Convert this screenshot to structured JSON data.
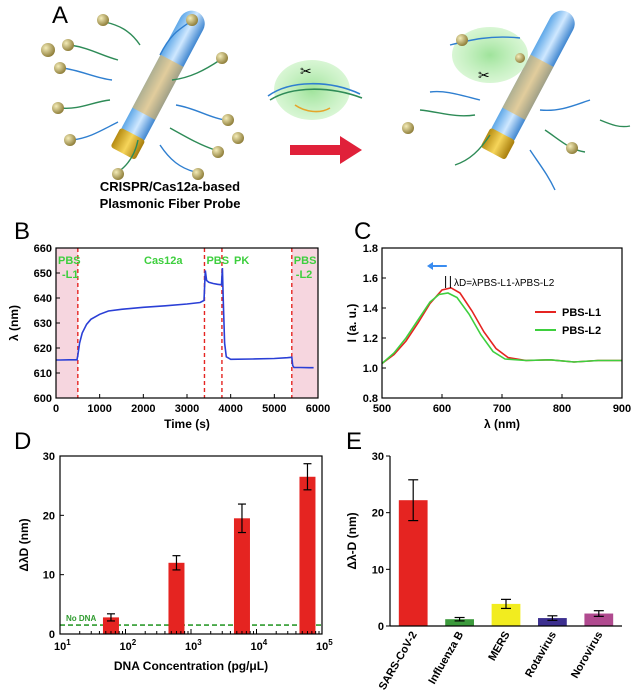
{
  "panels": {
    "A": "A",
    "B": "B",
    "C": "C",
    "D": "D",
    "E": "E"
  },
  "schematic": {
    "caption_line1": "CRISPR/Cas12a-based",
    "caption_line2": "Plasmonic Fiber Probe"
  },
  "colors": {
    "red": "#e52421",
    "blue": "#2a3fd6",
    "green": "#3ecf3e",
    "pink": "#f6d6df",
    "yellow": "#f2ec1f",
    "purple": "#3c2f8f",
    "magenta": "#b04a8f"
  },
  "chart_data": [
    {
      "id": "B",
      "type": "line",
      "xlabel": "Time (s)",
      "ylabel": "λ (nm)",
      "xlim": [
        0,
        6000
      ],
      "ylim": [
        600,
        660
      ],
      "xticks": [
        0,
        1000,
        2000,
        3000,
        4000,
        5000,
        6000
      ],
      "yticks": [
        600,
        610,
        620,
        630,
        640,
        650,
        660
      ],
      "dashed_markers_x": [
        500,
        3400,
        3800,
        5400
      ],
      "shaded_regions_x": [
        [
          0,
          500
        ],
        [
          5400,
          6000
        ]
      ],
      "stage_labels": [
        "PBS",
        "-L1",
        "Cas12a",
        "PBS",
        "PK",
        "PBS",
        "-L2"
      ],
      "series": [
        {
          "x": [
            0,
            100,
            300,
            480,
            500,
            540,
            600,
            700,
            800,
            1000,
            1200,
            1500,
            2000,
            2500,
            3000,
            3300,
            3390,
            3420,
            3450,
            3500,
            3600,
            3700,
            3790,
            3810,
            3830,
            3860,
            3900,
            4000,
            4500,
            5000,
            5300,
            5400,
            5420,
            5450,
            5600,
            5800,
            5900
          ],
          "y": [
            615.2,
            615.2,
            615.3,
            615.3,
            617,
            622,
            626,
            629.5,
            631.5,
            633.5,
            634.8,
            635.5,
            636.3,
            636.9,
            637.6,
            638.2,
            639,
            651,
            647,
            646.3,
            645.8,
            645.5,
            645.3,
            652,
            640,
            622,
            616.5,
            615.5,
            615.6,
            615.8,
            616.1,
            616.3,
            613,
            612.2,
            612.2,
            612.1,
            612.1
          ]
        }
      ]
    },
    {
      "id": "C",
      "type": "line",
      "xlabel": "λ (nm)",
      "ylabel": "I (a. u.)",
      "xlim": [
        500,
        900
      ],
      "ylim": [
        0.8,
        1.8
      ],
      "xticks": [
        500,
        600,
        700,
        800,
        900
      ],
      "yticks": [
        0.8,
        1.0,
        1.2,
        1.4,
        1.6,
        1.8
      ],
      "annotation": {
        "main": "λD=λPBS-L1-λPBS-L2"
      },
      "legend": "right",
      "series": [
        {
          "name": "PBS-L1",
          "color": "#e52421",
          "x": [
            500,
            520,
            540,
            560,
            580,
            600,
            615,
            630,
            650,
            670,
            690,
            710,
            740,
            780,
            820,
            860,
            900
          ],
          "y": [
            1.03,
            1.09,
            1.18,
            1.3,
            1.43,
            1.52,
            1.535,
            1.5,
            1.38,
            1.24,
            1.13,
            1.07,
            1.05,
            1.055,
            1.04,
            1.05,
            1.05
          ]
        },
        {
          "name": "PBS-L2",
          "color": "#3ecf3e",
          "x": [
            500,
            520,
            540,
            560,
            580,
            595,
            610,
            625,
            645,
            665,
            685,
            705,
            740,
            780,
            820,
            860,
            900
          ],
          "y": [
            1.03,
            1.1,
            1.2,
            1.32,
            1.44,
            1.49,
            1.5,
            1.47,
            1.36,
            1.22,
            1.11,
            1.06,
            1.05,
            1.055,
            1.04,
            1.05,
            1.05
          ]
        }
      ]
    },
    {
      "id": "D",
      "type": "bar",
      "xlabel": "DNA Concentration (pg/μL)",
      "ylabel": "ΔλD (nm)",
      "xscale": "log",
      "xlim": [
        10,
        100000
      ],
      "ylim": [
        0,
        30
      ],
      "xticks": [
        "10^1",
        "10^2",
        "10^3",
        "10^4",
        "10^5"
      ],
      "yticks": [
        0,
        10,
        20,
        30
      ],
      "x": [
        60,
        600,
        6000,
        60000
      ],
      "values": [
        2.8,
        12.0,
        19.5,
        26.5
      ],
      "errors": [
        0.6,
        1.2,
        2.4,
        2.2
      ],
      "baseline": {
        "label": "No DNA",
        "value": 1.5
      }
    },
    {
      "id": "E",
      "type": "bar",
      "xlabel": "",
      "ylabel": "Δλ-D (nm)",
      "ylim": [
        0,
        30
      ],
      "yticks": [
        0,
        10,
        20,
        30
      ],
      "categories": [
        "SARS-CoV-2",
        "Influenza B",
        "MERS",
        "Rotavirus",
        "Norovirus"
      ],
      "values": [
        22.2,
        1.2,
        3.9,
        1.4,
        2.2
      ],
      "errors": [
        3.6,
        0.3,
        0.8,
        0.4,
        0.5
      ],
      "colors": [
        "#e52421",
        "#3c9a3c",
        "#f2ec1f",
        "#3c2f8f",
        "#b04a8f"
      ]
    }
  ]
}
